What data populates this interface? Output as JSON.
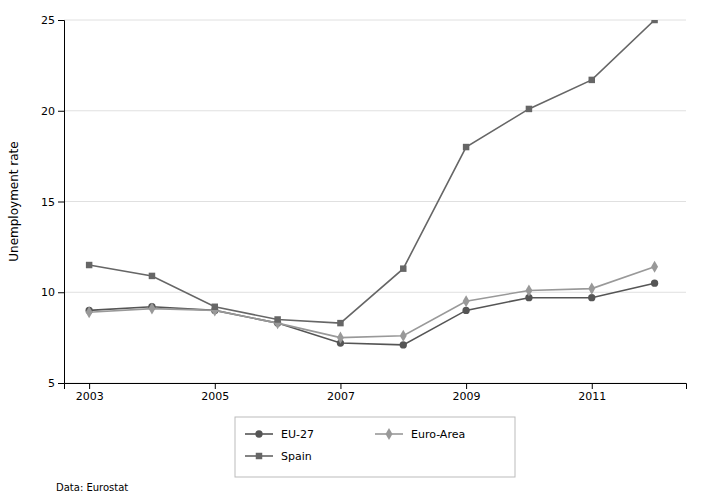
{
  "chart_data": {
    "type": "line",
    "x": [
      2003,
      2004,
      2005,
      2006,
      2007,
      2008,
      2009,
      2010,
      2011,
      2012
    ],
    "xlim": [
      2002.6,
      2012.5
    ],
    "xticks": [
      2003,
      2005,
      2007,
      2009,
      2011
    ],
    "ylim": [
      5,
      25
    ],
    "yticks": [
      5,
      10,
      15,
      20,
      25
    ],
    "ylabel": "Unemployment rate",
    "grid": true,
    "legend": "bottom",
    "annotations": [
      "Data: Eurostat"
    ],
    "series": [
      {
        "name": "EU-27",
        "color": "#555555",
        "marker": "circle",
        "values": [
          9.0,
          9.2,
          9.0,
          8.3,
          7.2,
          7.1,
          9.0,
          9.7,
          9.7,
          10.5
        ]
      },
      {
        "name": "Euro-Area",
        "color": "#999999",
        "marker": "diamond",
        "values": [
          8.9,
          9.1,
          9.0,
          8.3,
          7.5,
          7.6,
          9.5,
          10.1,
          10.2,
          11.4
        ]
      },
      {
        "name": "Spain",
        "color": "#666666",
        "marker": "square",
        "values": [
          11.5,
          10.9,
          9.2,
          8.5,
          8.3,
          11.3,
          18.0,
          20.1,
          21.7,
          25.0
        ]
      }
    ]
  }
}
